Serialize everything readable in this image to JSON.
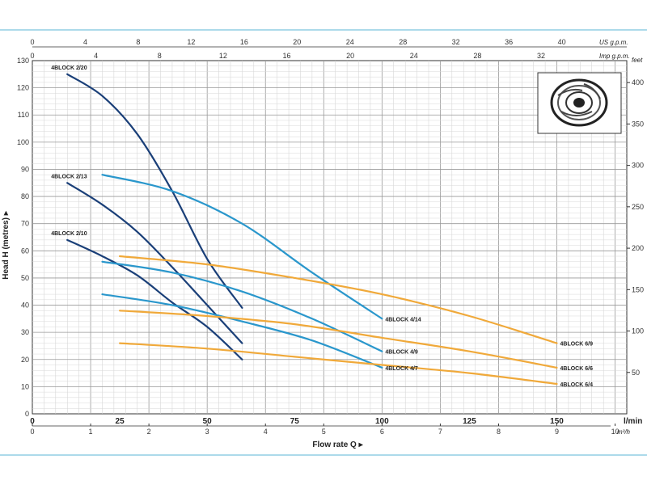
{
  "chart_data": {
    "type": "line",
    "xlabel": "Flow rate Q",
    "ylabel": "Head H (metres)",
    "x_unit": "l/min",
    "xlim": [
      0,
      170
    ],
    "ylim": [
      0,
      130
    ],
    "y_right_unit": "feet",
    "y_right_ticks": [
      50,
      100,
      150,
      200,
      250,
      300,
      350,
      400
    ],
    "x_ticks_lmin": [
      0,
      25,
      50,
      75,
      100,
      125,
      150
    ],
    "x_ticks_m3h": {
      "unit": "m³/h",
      "labels": [
        0,
        1,
        2,
        3,
        4,
        5,
        6,
        7,
        8,
        9,
        10
      ]
    },
    "x_ticks_us_gpm": {
      "unit": "US g.p.m.",
      "labels": [
        0,
        4,
        8,
        12,
        16,
        20,
        24,
        28,
        32,
        36,
        40
      ]
    },
    "x_ticks_imp_gpm": {
      "unit": "Imp g.p.m.",
      "labels": [
        0,
        4,
        8,
        12,
        16,
        20,
        24,
        28,
        32
      ]
    },
    "y_ticks": [
      0,
      10,
      20,
      30,
      40,
      50,
      60,
      70,
      80,
      90,
      100,
      110,
      120,
      130
    ],
    "grid": true,
    "series": [
      {
        "name": "4BLOCK 2/20",
        "color": "#1a3f78",
        "label_side": "start",
        "points": [
          [
            10,
            125
          ],
          [
            20,
            117
          ],
          [
            30,
            103
          ],
          [
            40,
            82
          ],
          [
            50,
            57
          ],
          [
            60,
            39
          ]
        ]
      },
      {
        "name": "4BLOCK 2/13",
        "color": "#1a3f78",
        "label_side": "start",
        "points": [
          [
            10,
            85
          ],
          [
            20,
            77
          ],
          [
            30,
            67
          ],
          [
            40,
            54
          ],
          [
            50,
            40
          ],
          [
            60,
            26
          ]
        ]
      },
      {
        "name": "4BLOCK 2/10",
        "color": "#1a3f78",
        "label_side": "start",
        "points": [
          [
            10,
            64
          ],
          [
            20,
            58
          ],
          [
            30,
            51
          ],
          [
            40,
            41
          ],
          [
            50,
            32
          ],
          [
            60,
            20
          ]
        ]
      },
      {
        "name": "4BLOCK 4/14",
        "color": "#2a97cc",
        "label_side": "end",
        "points": [
          [
            20,
            88
          ],
          [
            40,
            82
          ],
          [
            60,
            70
          ],
          [
            80,
            52
          ],
          [
            100,
            35
          ]
        ]
      },
      {
        "name": "4BLOCK 4/9",
        "color": "#2a97cc",
        "label_side": "end",
        "points": [
          [
            20,
            56
          ],
          [
            40,
            52
          ],
          [
            60,
            45
          ],
          [
            80,
            35
          ],
          [
            100,
            23
          ]
        ]
      },
      {
        "name": "4BLOCK 4/7",
        "color": "#2a97cc",
        "label_side": "end",
        "points": [
          [
            20,
            44
          ],
          [
            40,
            40
          ],
          [
            60,
            34
          ],
          [
            80,
            27
          ],
          [
            100,
            17
          ]
        ]
      },
      {
        "name": "4BLOCK 6/9",
        "color": "#f0a93a",
        "label_side": "end",
        "points": [
          [
            25,
            58
          ],
          [
            50,
            55
          ],
          [
            75,
            50
          ],
          [
            100,
            44
          ],
          [
            125,
            36
          ],
          [
            150,
            26
          ]
        ]
      },
      {
        "name": "4BLOCK 6/6",
        "color": "#f0a93a",
        "label_side": "end",
        "points": [
          [
            25,
            38
          ],
          [
            50,
            36
          ],
          [
            75,
            33
          ],
          [
            100,
            28
          ],
          [
            125,
            23
          ],
          [
            150,
            17
          ]
        ]
      },
      {
        "name": "4BLOCK 6/4",
        "color": "#f0a93a",
        "label_side": "end",
        "points": [
          [
            25,
            26
          ],
          [
            50,
            24
          ],
          [
            75,
            21
          ],
          [
            100,
            18
          ],
          [
            125,
            15
          ],
          [
            150,
            11
          ]
        ]
      }
    ]
  }
}
